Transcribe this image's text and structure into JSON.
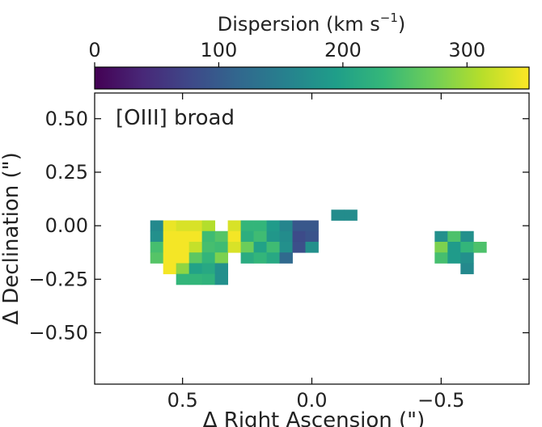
{
  "chart_data": {
    "type": "heatmap",
    "annotation": "[OIII] broad",
    "xlabel": "Δ Right Ascension (\")",
    "ylabel": "Δ Declination (\")",
    "xlim": [
      0.84,
      -0.84
    ],
    "ylim": [
      -0.74,
      0.62
    ],
    "xticks": [
      0.5,
      0.0,
      -0.5
    ],
    "xtick_labels": [
      "0.5",
      "0.0",
      "−0.5"
    ],
    "yticks": [
      0.5,
      0.25,
      0.0,
      -0.25,
      -0.5
    ],
    "ytick_labels": [
      "0.50",
      "0.25",
      "0.00",
      "−0.25",
      "−0.50"
    ],
    "colorbar": {
      "label": "Dispersion (km s",
      "label_exp": "−1",
      "label_close": ")",
      "range": [
        0,
        350
      ],
      "ticks": [
        0,
        100,
        200,
        300
      ],
      "tick_labels": [
        "0",
        "100",
        "200",
        "300"
      ],
      "colormap": "viridis",
      "colors": [
        "#440154",
        "#482878",
        "#3e4989",
        "#31688e",
        "#26828e",
        "#1f9e89",
        "#35b779",
        "#6ece58",
        "#b5de2b",
        "#fde725"
      ]
    },
    "pixel_size": 0.05,
    "pixels": [
      {
        "ra": -0.1,
        "dec": 0.05,
        "v": 170
      },
      {
        "ra": -0.15,
        "dec": 0.05,
        "v": 170
      },
      {
        "ra": 0.6,
        "dec": 0.0,
        "v": 165
      },
      {
        "ra": 0.55,
        "dec": 0.0,
        "v": 340
      },
      {
        "ra": 0.5,
        "dec": 0.0,
        "v": 330
      },
      {
        "ra": 0.45,
        "dec": 0.0,
        "v": 330
      },
      {
        "ra": 0.4,
        "dec": 0.0,
        "v": 310
      },
      {
        "ra": 0.3,
        "dec": 0.0,
        "v": 330
      },
      {
        "ra": 0.25,
        "dec": 0.0,
        "v": 230
      },
      {
        "ra": 0.2,
        "dec": 0.0,
        "v": 230
      },
      {
        "ra": 0.15,
        "dec": 0.0,
        "v": 190
      },
      {
        "ra": 0.1,
        "dec": 0.0,
        "v": 160
      },
      {
        "ra": 0.05,
        "dec": 0.0,
        "v": 95
      },
      {
        "ra": 0.0,
        "dec": 0.0,
        "v": 95
      },
      {
        "ra": 0.6,
        "dec": -0.05,
        "v": 175
      },
      {
        "ra": 0.55,
        "dec": -0.05,
        "v": 345
      },
      {
        "ra": 0.5,
        "dec": -0.05,
        "v": 345
      },
      {
        "ra": 0.45,
        "dec": -0.05,
        "v": 345
      },
      {
        "ra": 0.4,
        "dec": -0.05,
        "v": 240
      },
      {
        "ra": 0.35,
        "dec": -0.05,
        "v": 255
      },
      {
        "ra": 0.3,
        "dec": -0.05,
        "v": 345
      },
      {
        "ra": 0.25,
        "dec": -0.05,
        "v": 220
      },
      {
        "ra": 0.2,
        "dec": -0.05,
        "v": 240
      },
      {
        "ra": 0.15,
        "dec": -0.05,
        "v": 185
      },
      {
        "ra": 0.1,
        "dec": -0.05,
        "v": 170
      },
      {
        "ra": 0.05,
        "dec": -0.05,
        "v": 80
      },
      {
        "ra": 0.0,
        "dec": -0.05,
        "v": 90
      },
      {
        "ra": -0.5,
        "dec": -0.05,
        "v": 175
      },
      {
        "ra": -0.55,
        "dec": -0.05,
        "v": 250
      },
      {
        "ra": -0.6,
        "dec": -0.05,
        "v": 175
      },
      {
        "ra": 0.6,
        "dec": -0.1,
        "v": 245
      },
      {
        "ra": 0.55,
        "dec": -0.1,
        "v": 345
      },
      {
        "ra": 0.5,
        "dec": -0.1,
        "v": 345
      },
      {
        "ra": 0.45,
        "dec": -0.1,
        "v": 320
      },
      {
        "ra": 0.4,
        "dec": -0.1,
        "v": 245
      },
      {
        "ra": 0.35,
        "dec": -0.1,
        "v": 240
      },
      {
        "ra": 0.3,
        "dec": -0.1,
        "v": 330
      },
      {
        "ra": 0.25,
        "dec": -0.1,
        "v": 270
      },
      {
        "ra": 0.2,
        "dec": -0.1,
        "v": 200
      },
      {
        "ra": 0.15,
        "dec": -0.1,
        "v": 240
      },
      {
        "ra": 0.1,
        "dec": -0.1,
        "v": 175
      },
      {
        "ra": 0.05,
        "dec": -0.1,
        "v": 85
      },
      {
        "ra": 0.0,
        "dec": -0.1,
        "v": 175
      },
      {
        "ra": -0.5,
        "dec": -0.1,
        "v": 280
      },
      {
        "ra": -0.55,
        "dec": -0.1,
        "v": 190
      },
      {
        "ra": -0.6,
        "dec": -0.1,
        "v": 230
      },
      {
        "ra": -0.65,
        "dec": -0.1,
        "v": 250
      },
      {
        "ra": 0.6,
        "dec": -0.15,
        "v": 255
      },
      {
        "ra": 0.55,
        "dec": -0.15,
        "v": 345
      },
      {
        "ra": 0.5,
        "dec": -0.15,
        "v": 345
      },
      {
        "ra": 0.45,
        "dec": -0.15,
        "v": 260
      },
      {
        "ra": 0.4,
        "dec": -0.15,
        "v": 230
      },
      {
        "ra": 0.35,
        "dec": -0.15,
        "v": 280
      },
      {
        "ra": 0.25,
        "dec": -0.15,
        "v": 215
      },
      {
        "ra": 0.2,
        "dec": -0.15,
        "v": 230
      },
      {
        "ra": 0.15,
        "dec": -0.15,
        "v": 210
      },
      {
        "ra": 0.1,
        "dec": -0.15,
        "v": 120
      },
      {
        "ra": -0.5,
        "dec": -0.15,
        "v": 245
      },
      {
        "ra": -0.55,
        "dec": -0.15,
        "v": 190
      },
      {
        "ra": -0.6,
        "dec": -0.15,
        "v": 175
      },
      {
        "ra": 0.55,
        "dec": -0.2,
        "v": 345
      },
      {
        "ra": 0.5,
        "dec": -0.2,
        "v": 290
      },
      {
        "ra": 0.45,
        "dec": -0.2,
        "v": 200
      },
      {
        "ra": 0.4,
        "dec": -0.2,
        "v": 210
      },
      {
        "ra": 0.35,
        "dec": -0.2,
        "v": 175
      },
      {
        "ra": -0.6,
        "dec": -0.2,
        "v": 165
      },
      {
        "ra": 0.5,
        "dec": -0.25,
        "v": 230
      },
      {
        "ra": 0.45,
        "dec": -0.25,
        "v": 230
      },
      {
        "ra": 0.4,
        "dec": -0.25,
        "v": 225
      },
      {
        "ra": 0.35,
        "dec": -0.25,
        "v": 175
      }
    ]
  }
}
